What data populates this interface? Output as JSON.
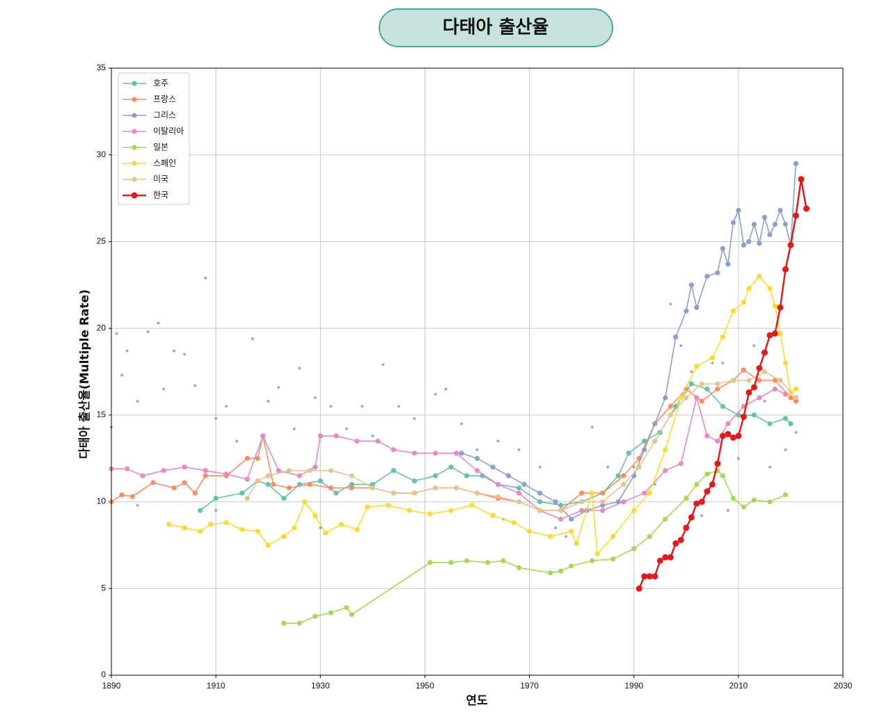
{
  "chart_data": {
    "type": "line",
    "title": "다태아 출산율",
    "x_label": "연도",
    "y_label": "다태아 출산율(Multiple Rate)",
    "xlim": [
      1890,
      2030
    ],
    "xticks": [
      1890,
      1910,
      1930,
      1950,
      1970,
      1990,
      2010,
      2030
    ],
    "ylim": [
      0,
      35
    ],
    "yticks": [
      0,
      5,
      10,
      15,
      20,
      25,
      30,
      35
    ],
    "grid": true,
    "legend": "upper-left",
    "background_points": {
      "color": "#8c8c8c",
      "x": [
        1890,
        1891,
        1892,
        1893,
        1895,
        1897,
        1899,
        1900,
        1902,
        1904,
        1906,
        1908,
        1910,
        1912,
        1914,
        1917,
        1920,
        1922,
        1925,
        1926,
        1929,
        1932,
        1935,
        1938,
        1940,
        1942,
        1945,
        1948,
        1952,
        1954,
        1957,
        1960,
        1964,
        1968,
        1972,
        1975,
        1977,
        1982,
        1985,
        1990,
        1994,
        1997,
        1999,
        2003,
        2005,
        2008,
        2010,
        2013,
        2016,
        2019,
        2021,
        1895,
        1910,
        1930,
        1965,
        2001,
        2007,
        2015
      ],
      "values": [
        14.3,
        19.7,
        17.3,
        18.7,
        15.8,
        19.8,
        20.3,
        16.5,
        18.7,
        18.5,
        16.7,
        22.9,
        14.8,
        15.5,
        13.5,
        19.4,
        15.8,
        16.6,
        14.2,
        17.7,
        16.0,
        15.5,
        14.2,
        15.5,
        13.8,
        17.9,
        15.5,
        14.8,
        16.2,
        16.5,
        14.5,
        13.0,
        13.5,
        13.0,
        12.0,
        8.5,
        8.0,
        14.3,
        12.0,
        12.0,
        11.0,
        21.4,
        19.0,
        9.2,
        18.0,
        9.5,
        12.5,
        19.0,
        12.0,
        13.0,
        14.0,
        9.8,
        9.5,
        8.5,
        9.0,
        17.5,
        18.0,
        15.8
      ]
    },
    "series": [
      {
        "name": "호주",
        "color": "#66c2a5",
        "x": [
          1907,
          1910,
          1915,
          1918,
          1920,
          1923,
          1926,
          1930,
          1933,
          1936,
          1940,
          1944,
          1948,
          1952,
          1955,
          1958,
          1961,
          1964,
          1968,
          1972,
          1976,
          1980,
          1984,
          1987,
          1989,
          1992,
          1995,
          1998,
          2001,
          2004,
          2007,
          2010,
          2013,
          2016,
          2019,
          2020
        ],
        "values": [
          9.5,
          10.2,
          10.5,
          11.2,
          11.0,
          10.2,
          11.0,
          11.2,
          10.5,
          11.0,
          11.0,
          11.8,
          11.2,
          11.5,
          12.0,
          11.5,
          11.5,
          11.0,
          10.8,
          10.0,
          9.8,
          10.0,
          10.5,
          11.5,
          12.8,
          13.5,
          14.0,
          15.5,
          16.8,
          16.5,
          15.5,
          15.0,
          15.0,
          14.5,
          14.8,
          14.5
        ]
      },
      {
        "name": "프랑스",
        "color": "#fc8d62",
        "x": [
          1890,
          1892,
          1894,
          1898,
          1902,
          1904,
          1906,
          1908,
          1912,
          1916,
          1918,
          1919,
          1921,
          1924,
          1928,
          1932,
          1936,
          1940,
          1944,
          1948,
          1952,
          1956,
          1960,
          1964,
          1968,
          1972,
          1976,
          1980,
          1984,
          1988,
          1991,
          1994,
          1997,
          2000,
          2003,
          2006,
          2009,
          2011,
          2014,
          2017,
          2020,
          2021
        ],
        "values": [
          10.0,
          10.4,
          10.3,
          11.1,
          10.8,
          11.1,
          10.5,
          11.5,
          11.5,
          12.5,
          12.5,
          13.8,
          11.0,
          10.8,
          11.0,
          10.8,
          10.8,
          10.8,
          10.5,
          10.5,
          10.8,
          10.8,
          10.5,
          10.2,
          10.0,
          9.5,
          9.5,
          10.5,
          10.5,
          11.5,
          12.5,
          14.5,
          15.5,
          16.5,
          15.8,
          16.5,
          17.0,
          17.6,
          17.0,
          17.0,
          16.0,
          15.8
        ]
      },
      {
        "name": "그리스",
        "color": "#8da0cb",
        "x": [
          1957,
          1960,
          1963,
          1966,
          1969,
          1972,
          1975,
          1978,
          1981,
          1984,
          1987,
          1990,
          1992,
          1994,
          1996,
          1998,
          2000,
          2001,
          2002,
          2004,
          2006,
          2007,
          2008,
          2009,
          2010,
          2011,
          2012,
          2013,
          2014,
          2015,
          2016,
          2017,
          2018,
          2019,
          2020,
          2021
        ],
        "values": [
          12.8,
          12.5,
          12.0,
          11.5,
          11.0,
          10.5,
          10.0,
          9.0,
          9.5,
          9.8,
          10.0,
          11.5,
          13.0,
          14.5,
          16.0,
          19.5,
          21.0,
          22.5,
          21.2,
          23.0,
          23.2,
          24.6,
          23.7,
          26.1,
          26.8,
          24.8,
          25.0,
          26.0,
          24.9,
          26.4,
          25.4,
          26.0,
          26.8,
          26.0,
          24.8,
          29.5
        ]
      },
      {
        "name": "이탈리아",
        "color": "#e78ac3",
        "x": [
          1890,
          1893,
          1896,
          1900,
          1904,
          1908,
          1912,
          1916,
          1919,
          1922,
          1926,
          1929,
          1930,
          1933,
          1937,
          1941,
          1944,
          1948,
          1952,
          1956,
          1960,
          1964,
          1968,
          1972,
          1976,
          1980,
          1984,
          1988,
          1992,
          1996,
          1999,
          2002,
          2004,
          2006,
          2008,
          2011,
          2014,
          2017,
          2019
        ],
        "values": [
          11.9,
          11.9,
          11.5,
          11.8,
          12.0,
          11.8,
          11.6,
          11.3,
          13.8,
          11.8,
          11.5,
          12.0,
          13.8,
          13.8,
          13.5,
          13.5,
          13.0,
          12.8,
          12.8,
          12.8,
          11.8,
          11.0,
          10.5,
          9.5,
          9.0,
          9.5,
          9.5,
          10.0,
          10.5,
          11.8,
          12.2,
          16.0,
          13.8,
          13.5,
          14.5,
          15.5,
          16.0,
          16.5,
          16.2
        ]
      },
      {
        "name": "일본",
        "color": "#a6d854",
        "x": [
          1923,
          1926,
          1929,
          1932,
          1935,
          1936,
          1951,
          1955,
          1958,
          1962,
          1965,
          1968,
          1974,
          1976,
          1978,
          1982,
          1986,
          1990,
          1993,
          1996,
          2000,
          2002,
          2004,
          2006,
          2007,
          2009,
          2011,
          2013,
          2016,
          2019
        ],
        "values": [
          3.0,
          3.0,
          3.4,
          3.6,
          3.9,
          3.5,
          6.5,
          6.5,
          6.6,
          6.5,
          6.6,
          6.2,
          5.9,
          6.0,
          6.3,
          6.6,
          6.7,
          7.3,
          8.0,
          9.0,
          10.2,
          11.0,
          11.6,
          11.8,
          11.5,
          10.2,
          9.7,
          10.1,
          10.0,
          10.4
        ]
      },
      {
        "name": "스페인",
        "color": "#ffd92f",
        "x": [
          1901,
          1904,
          1907,
          1909,
          1912,
          1915,
          1918,
          1920,
          1923,
          1925,
          1927,
          1929,
          1931,
          1934,
          1937,
          1939,
          1943,
          1947,
          1951,
          1955,
          1959,
          1963,
          1967,
          1970,
          1974,
          1978,
          1979,
          1982,
          1983,
          1986,
          1990,
          1993,
          1996,
          1999,
          2002,
          2005,
          2007,
          2009,
          2011,
          2012,
          2014,
          2016,
          2017,
          2018,
          2019,
          2020,
          2021
        ],
        "values": [
          8.7,
          8.5,
          8.3,
          8.7,
          8.8,
          8.4,
          8.3,
          7.5,
          8.0,
          8.5,
          10.0,
          9.2,
          8.2,
          8.7,
          8.4,
          9.7,
          9.8,
          9.5,
          9.3,
          9.5,
          9.8,
          9.2,
          8.8,
          8.3,
          8.0,
          8.3,
          7.6,
          10.5,
          7.0,
          8.0,
          9.5,
          10.5,
          13.0,
          16.0,
          17.8,
          18.3,
          19.5,
          21.0,
          21.5,
          22.3,
          23.0,
          22.3,
          21.3,
          19.7,
          18.0,
          16.3,
          16.5
        ]
      },
      {
        "name": "미국",
        "color": "#e5c494",
        "x": [
          1916,
          1918,
          1920,
          1924,
          1928,
          1932,
          1936,
          1940,
          1944,
          1948,
          1952,
          1956,
          1960,
          1964,
          1968,
          1972,
          1976,
          1980,
          1984,
          1988,
          1991,
          1994,
          1997,
          2000,
          2003,
          2006,
          2009,
          2012,
          2015,
          2018,
          2021
        ],
        "values": [
          10.2,
          11.2,
          11.5,
          11.8,
          11.8,
          11.8,
          11.5,
          10.8,
          10.5,
          10.5,
          10.8,
          10.8,
          10.5,
          10.3,
          10.0,
          9.5,
          9.5,
          10.0,
          10.0,
          11.0,
          12.0,
          13.5,
          15.0,
          16.0,
          16.8,
          16.8,
          17.0,
          17.0,
          17.5,
          17.0,
          16.0
        ]
      },
      {
        "name": "한국",
        "color": "#e31a1c",
        "x": [
          1991,
          1992,
          1993,
          1994,
          1995,
          1996,
          1997,
          1998,
          1999,
          2000,
          2001,
          2002,
          2003,
          2004,
          2005,
          2006,
          2007,
          2008,
          2009,
          2010,
          2011,
          2012,
          2013,
          2014,
          2015,
          2016,
          2017,
          2018,
          2019,
          2020,
          2021,
          2022,
          2023
        ],
        "values": [
          5.0,
          5.7,
          5.7,
          5.7,
          6.6,
          6.8,
          6.8,
          7.6,
          7.8,
          8.5,
          9.1,
          9.9,
          10.0,
          10.6,
          11.0,
          12.2,
          13.8,
          13.9,
          13.7,
          13.8,
          14.9,
          16.3,
          16.6,
          17.7,
          18.6,
          19.6,
          19.7,
          21.2,
          23.4,
          24.8,
          26.5,
          28.6,
          26.9
        ]
      }
    ]
  }
}
